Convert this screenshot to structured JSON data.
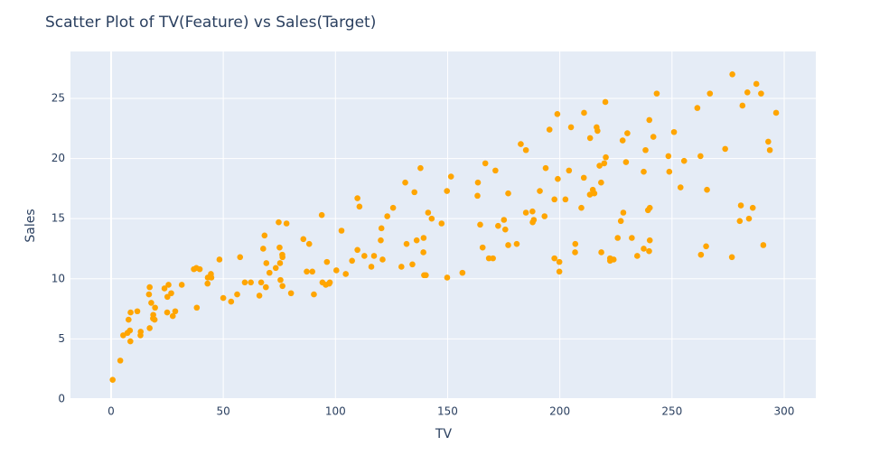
{
  "chart_data": {
    "type": "scatter",
    "title": "Scatter Plot of TV(Feature) vs Sales(Target)",
    "x_label": "TV",
    "y_label": "Sales",
    "color": "orange",
    "grid": true,
    "xlim": [
      -18.1,
      314.1
    ],
    "ylim": [
      0,
      28.9
    ],
    "xticks": [
      0,
      50,
      100,
      150,
      200,
      250,
      300
    ],
    "yticks": [
      0,
      5,
      10,
      15,
      20,
      25
    ],
    "x": [
      230.1,
      44.5,
      17.2,
      151.5,
      180.8,
      8.7,
      57.5,
      120.2,
      8.6,
      199.8,
      66.1,
      214.7,
      23.8,
      97.5,
      204.1,
      195.4,
      67.8,
      281.4,
      69.2,
      147.3,
      218.4,
      237.4,
      13.2,
      228.3,
      62.3,
      262.9,
      142.9,
      240.1,
      248.8,
      70.6,
      292.9,
      112.9,
      97.2,
      265.6,
      95.7,
      290.7,
      266.9,
      74.7,
      43.1,
      228,
      202.5,
      177,
      293.6,
      206.9,
      25.1,
      175.1,
      89.7,
      239.9,
      227.2,
      66.9,
      199.8,
      100.4,
      216.4,
      182.6,
      262.7,
      198.9,
      7.3,
      136.2,
      210.8,
      210.7,
      53.5,
      261.3,
      239.3,
      102.7,
      131.1,
      69,
      31.5,
      139.3,
      237.4,
      216.8,
      199.1,
      109.8,
      26.8,
      129.4,
      213.4,
      16.9,
      27.5,
      120.5,
      5.4,
      116,
      76.4,
      239.8,
      75.3,
      68.4,
      213.5,
      193.2,
      76.3,
      110.7,
      88.3,
      109.8,
      134.3,
      28.6,
      217.7,
      250.9,
      107.4,
      163.3,
      197.6,
      184.9,
      289.7,
      135.2,
      222.4,
      296.4,
      280.2,
      187.9,
      238.2,
      137.9,
      25,
      90.4,
      13.1,
      255.4,
      225.8,
      241.7,
      175.7,
      209.6,
      78.2,
      75.1,
      139.2,
      76.4,
      125.7,
      19.4,
      141.3,
      18.8,
      224,
      123.1,
      229.5,
      87.2,
      7.8,
      80.2,
      220.3,
      59.6,
      0.7,
      265.2,
      8.4,
      219.8,
      36.9,
      48.3,
      25.6,
      273.7,
      43,
      184.9,
      73.4,
      193.7,
      220.5,
      104.6,
      96.2,
      140.3,
      240.1,
      243.2,
      38,
      44.7,
      280.7,
      121,
      197.6,
      171.3,
      187.8,
      4.1,
      93.9,
      149.8,
      11.7,
      131.7,
      172.5,
      85.7,
      188.4,
      163.5,
      117.2,
      234.5,
      17.9,
      206.8,
      215.4,
      284.3,
      50,
      164.5,
      19.6,
      168.4,
      222.4,
      276.9,
      248.4,
      170.2,
      276.7,
      165.6,
      156.6,
      218.5,
      56.2,
      287.6,
      253.8,
      205,
      139.5,
      191.1,
      286,
      18.7,
      39.5,
      75.5,
      17.2,
      166.8,
      149.7,
      38.2,
      94.2,
      177,
      283.6,
      232.1
    ],
    "y": [
      22.1,
      10.4,
      9.3,
      18.5,
      12.9,
      7.2,
      11.8,
      13.2,
      4.8,
      10.6,
      8.6,
      17.4,
      9.2,
      9.7,
      19,
      22.4,
      12.5,
      24.4,
      11.3,
      14.6,
      18,
      12.5,
      5.6,
      15.5,
      9.7,
      12,
      15,
      15.9,
      18.9,
      10.5,
      21.4,
      11.9,
      9.6,
      17.4,
      9.5,
      12.8,
      25.4,
      14.7,
      10.1,
      21.5,
      16.6,
      17.1,
      20.7,
      12.9,
      8.5,
      14.9,
      10.6,
      23.2,
      14.8,
      9.7,
      11.4,
      10.7,
      22.6,
      21.2,
      20.2,
      23.7,
      5.5,
      13.2,
      23.8,
      18.4,
      8.1,
      24.2,
      15.7,
      14,
      18,
      9.3,
      9.5,
      13.4,
      18.9,
      22.3,
      18.3,
      12.4,
      8.8,
      11,
      17,
      8.7,
      6.9,
      14.2,
      5.3,
      11,
      11.8,
      12.3,
      11.3,
      13.6,
      21.7,
      15.2,
      12,
      16,
      12.9,
      16.7,
      11.2,
      7.3,
      19.4,
      22.2,
      11.5,
      16.9,
      11.7,
      15.5,
      25.4,
      17.2,
      11.7,
      23.8,
      14.8,
      14.7,
      20.7,
      19.2,
      7.2,
      8.7,
      5.3,
      19.8,
      13.4,
      21.8,
      14.1,
      15.9,
      14.6,
      12.6,
      12.2,
      9.4,
      15.9,
      6.6,
      15.5,
      7,
      11.6,
      15.2,
      19.7,
      10.6,
      6.6,
      8.8,
      24.7,
      9.7,
      1.6,
      12.7,
      5.7,
      19.6,
      10.8,
      11.6,
      9.5,
      20.8,
      9.6,
      20.7,
      10.9,
      19.2,
      20.1,
      10.4,
      11.4,
      10.3,
      13.2,
      25.4,
      10.9,
      10.1,
      16.1,
      11.6,
      16.6,
      19,
      15.6,
      3.2,
      15.3,
      10.1,
      7.3,
      12.9,
      14.4,
      13.3,
      14.9,
      18,
      11.9,
      11.9,
      8,
      12.2,
      17.1,
      15,
      8.4,
      14.5,
      7.6,
      11.7,
      11.5,
      27,
      20.2,
      11.7,
      11.8,
      12.6,
      10.5,
      12.2,
      8.7,
      26.2,
      17.6,
      22.6,
      10.3,
      17.3,
      15.9,
      6.7,
      10.8,
      9.9,
      5.9,
      19.6,
      17.3,
      7.6,
      9.7,
      12.8,
      25.5,
      13.4
    ]
  }
}
